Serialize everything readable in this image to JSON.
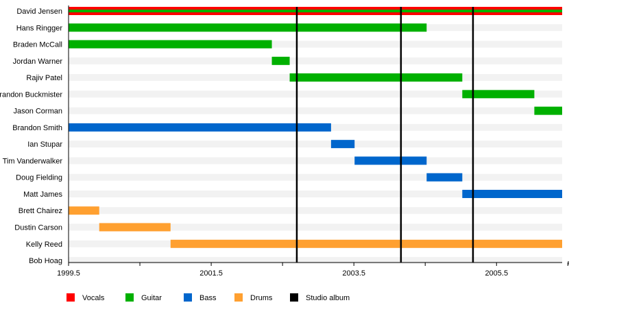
{
  "chart_data": {
    "type": "timeline",
    "title": "",
    "xlim": [
      1999.5,
      2006.42
    ],
    "x_ticks": [
      "1999.5",
      "2001.5",
      "2003.5",
      "2005.5"
    ],
    "x_tick_values": [
      1999.5,
      2001.5,
      2003.5,
      2005.5
    ],
    "grid": false,
    "legend_placement": "bottom",
    "roles": [
      {
        "name": "Vocals",
        "color": "#ff0000"
      },
      {
        "name": "Guitar",
        "color": "#00b000"
      },
      {
        "name": "Bass",
        "color": "#0066cc"
      },
      {
        "name": "Drums",
        "color": "#ffa030"
      },
      {
        "name": "Studio album",
        "color": "#000000"
      }
    ],
    "members": [
      {
        "name": "David Jensen",
        "periods": [
          {
            "role": "Vocals",
            "secondary": "Guitar",
            "start": 1999.5,
            "end": 2006.42
          }
        ]
      },
      {
        "name": "Hans Ringger",
        "periods": [
          {
            "role": "Guitar",
            "start": 1999.5,
            "end": 2004.52
          }
        ]
      },
      {
        "name": "Braden McCall",
        "periods": [
          {
            "role": "Guitar",
            "start": 1999.5,
            "end": 2002.35
          }
        ]
      },
      {
        "name": "Jordan Warner",
        "periods": [
          {
            "role": "Guitar",
            "start": 2002.35,
            "end": 2002.6
          }
        ]
      },
      {
        "name": "Rajiv Patel",
        "periods": [
          {
            "role": "Guitar",
            "start": 2002.6,
            "end": 2005.02
          }
        ]
      },
      {
        "name": "Brandon Buckmister",
        "periods": [
          {
            "role": "Guitar",
            "start": 2005.02,
            "end": 2006.03
          }
        ]
      },
      {
        "name": "Jason Corman",
        "periods": [
          {
            "role": "Guitar",
            "start": 2006.03,
            "end": 2006.42
          }
        ]
      },
      {
        "name": "Brandon Smith",
        "periods": [
          {
            "role": "Bass",
            "start": 1999.5,
            "end": 2003.18
          }
        ]
      },
      {
        "name": "Ian Stupar",
        "periods": [
          {
            "role": "Bass",
            "start": 2003.18,
            "end": 2003.51
          }
        ]
      },
      {
        "name": "Tim Vanderwalker",
        "periods": [
          {
            "role": "Bass",
            "start": 2003.51,
            "end": 2004.52
          }
        ]
      },
      {
        "name": "Doug Fielding",
        "periods": [
          {
            "role": "Bass",
            "start": 2004.52,
            "end": 2005.02
          }
        ]
      },
      {
        "name": "Matt James",
        "periods": [
          {
            "role": "Bass",
            "start": 2005.02,
            "end": 2006.42
          }
        ]
      },
      {
        "name": "Brett Chairez",
        "periods": [
          {
            "role": "Drums",
            "start": 1999.5,
            "end": 1999.93
          }
        ]
      },
      {
        "name": "Dustin Carson",
        "periods": [
          {
            "role": "Drums",
            "start": 1999.93,
            "end": 2000.93
          }
        ]
      },
      {
        "name": "Kelly Reed",
        "periods": [
          {
            "role": "Drums",
            "start": 2000.93,
            "end": 2006.42
          }
        ]
      },
      {
        "name": "Bob Hoag",
        "periods": []
      }
    ],
    "studio_albums": [
      2002.7,
      2004.16,
      2005.17
    ]
  }
}
